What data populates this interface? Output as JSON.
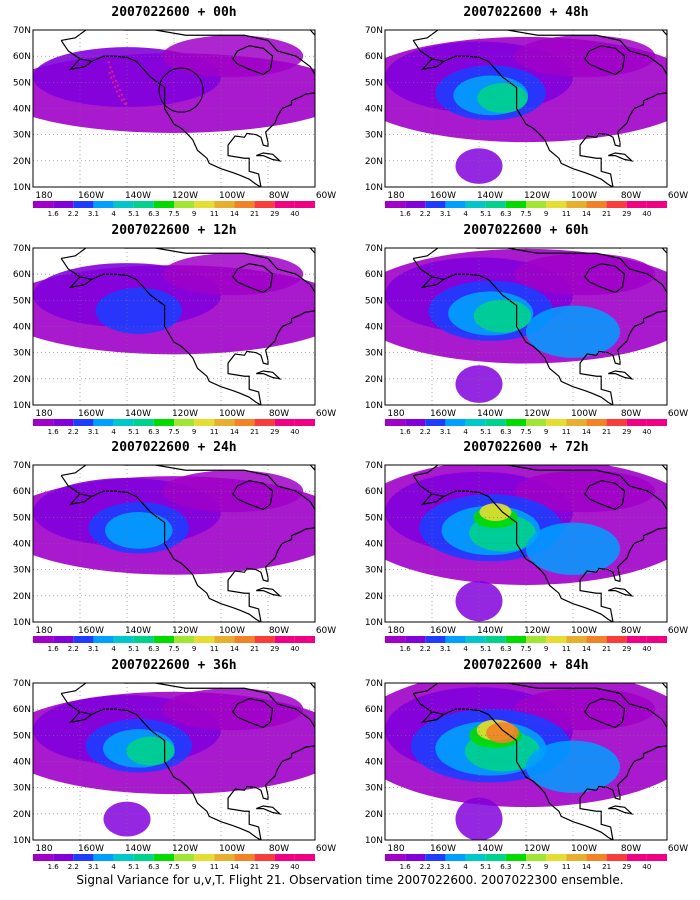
{
  "figure": {
    "caption": "Signal Variance for u,v,T. Flight 21. Observation time 2007022600. 2007022300 ensemble."
  },
  "axes": {
    "lon_ticks": [
      "180",
      "160W",
      "140W",
      "120W",
      "100W",
      "80W",
      "60W"
    ],
    "lat_ticks": [
      "70N",
      "60N",
      "50N",
      "40N",
      "30N",
      "20N",
      "10N"
    ]
  },
  "colorbar": {
    "levels": [
      "1.6",
      "2.2",
      "3.1",
      "4",
      "5.1",
      "6.3",
      "7.5",
      "9",
      "11",
      "14",
      "21",
      "29",
      "40"
    ],
    "colors": [
      "#a000c8",
      "#8200dc",
      "#1e3cff",
      "#00a0ff",
      "#00c8c8",
      "#00d28c",
      "#00dc00",
      "#a0e632",
      "#e6dc32",
      "#e6af2d",
      "#f08228",
      "#fa3c3c",
      "#f00082"
    ]
  },
  "panels": [
    {
      "title": "2007022600 + 00h",
      "forecast_hour": 0,
      "intensity": 0.18
    },
    {
      "title": "2007022600 + 48h",
      "forecast_hour": 48,
      "intensity": 0.45
    },
    {
      "title": "2007022600 + 12h",
      "forecast_hour": 12,
      "intensity": 0.28
    },
    {
      "title": "2007022600 + 60h",
      "forecast_hour": 60,
      "intensity": 0.55
    },
    {
      "title": "2007022600 + 24h",
      "forecast_hour": 24,
      "intensity": 0.38
    },
    {
      "title": "2007022600 + 72h",
      "forecast_hour": 72,
      "intensity": 0.68
    },
    {
      "title": "2007022600 + 36h",
      "forecast_hour": 36,
      "intensity": 0.42
    },
    {
      "title": "2007022600 + 84h",
      "forecast_hour": 84,
      "intensity": 0.8
    }
  ]
}
